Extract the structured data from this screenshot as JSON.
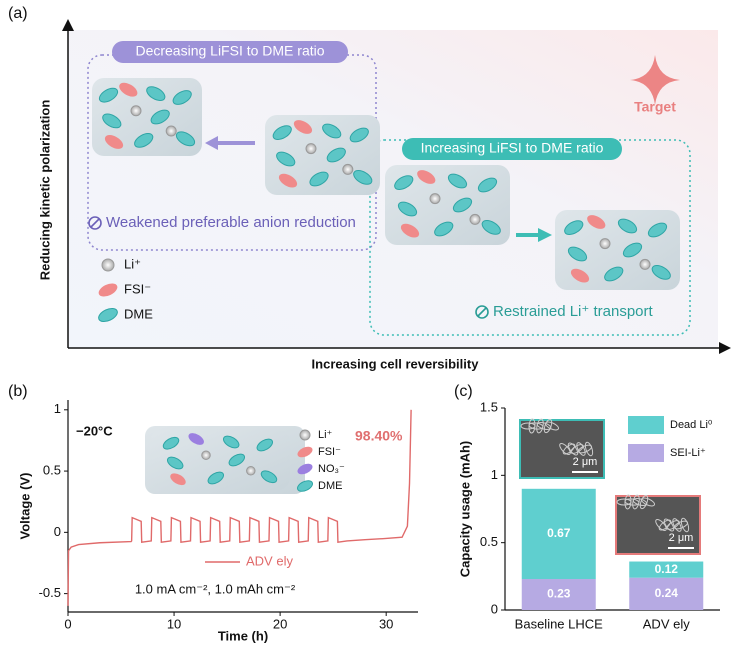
{
  "panel_a": {
    "label": "(a)",
    "y_axis": "Reducing kinetic polarization",
    "x_axis": "Increasing cell reversibility",
    "target": "Target",
    "left_box": {
      "title": "Decreasing LiFSI to DME ratio",
      "caption": "Weakened preferable anion reduction"
    },
    "right_box": {
      "title": "Increasing LiFSI to DME ratio",
      "caption": "Restrained Li⁺ transport"
    },
    "legend": [
      "Li⁺",
      "FSI⁻",
      "DME"
    ]
  },
  "chart_data": [
    {
      "type": "line",
      "label": "(b)",
      "xlabel": "Time (h)",
      "ylabel": "Voltage (V)",
      "annotations": {
        "temperature": "−20°C",
        "efficiency": "98.40%",
        "conditions": "1.0 mA cm⁻², 1.0 mAh cm⁻²"
      },
      "inset_legend": [
        "Li⁺",
        "FSI⁻",
        "NO₃⁻",
        "DME"
      ],
      "xlim": [
        0,
        33
      ],
      "xticks": [
        0,
        10,
        20,
        30
      ],
      "ylim": [
        -0.65,
        1.08
      ],
      "yticks": [
        -0.5,
        0,
        0.5,
        1
      ],
      "x": [
        0,
        0.05,
        0.3,
        1,
        3,
        5.95,
        6,
        6.05,
        6.9,
        6.95,
        7.85,
        7.9,
        8.75,
        8.8,
        9.7,
        9.75,
        10.6,
        10.65,
        11.55,
        11.6,
        12.45,
        12.5,
        13.4,
        13.45,
        14.3,
        14.35,
        15.25,
        15.3,
        16.15,
        16.2,
        17.1,
        17.15,
        18,
        18.05,
        18.95,
        19,
        19.85,
        19.9,
        20.8,
        20.85,
        21.7,
        21.75,
        22.65,
        22.7,
        23.55,
        23.6,
        24.5,
        24.55,
        25.4,
        25.45,
        26.3,
        28,
        30,
        31.5,
        32,
        32.2,
        32.35
      ],
      "series": [
        {
          "name": "ADV ely",
          "color": "#e06a6a",
          "values": [
            -0.6,
            -0.15,
            -0.12,
            -0.1,
            -0.085,
            -0.075,
            -0.07,
            0.12,
            0.09,
            -0.08,
            -0.07,
            0.12,
            0.09,
            -0.08,
            -0.07,
            0.12,
            0.09,
            -0.08,
            -0.07,
            0.12,
            0.09,
            -0.08,
            -0.07,
            0.12,
            0.09,
            -0.08,
            -0.07,
            0.12,
            0.09,
            -0.08,
            -0.07,
            0.12,
            0.09,
            -0.08,
            -0.07,
            0.12,
            0.09,
            -0.08,
            -0.07,
            0.12,
            0.09,
            -0.08,
            -0.07,
            0.12,
            0.09,
            -0.08,
            -0.07,
            0.12,
            0.09,
            -0.08,
            -0.07,
            -0.06,
            -0.05,
            -0.04,
            0.05,
            0.4,
            1.0
          ]
        }
      ]
    },
    {
      "type": "bar",
      "stacked": true,
      "label": "(c)",
      "ylabel": "Capacity usage (mAh)",
      "categories": [
        "Baseline LHCE",
        "ADV ely"
      ],
      "ylim": [
        0,
        1.5
      ],
      "yticks": [
        0,
        0.5,
        1,
        1.5
      ],
      "scale_bars": [
        "2 μm",
        "2 μm"
      ],
      "series": [
        {
          "name": "Dead Li⁰",
          "color": "#5fcfcf",
          "values": [
            0.67,
            0.12
          ]
        },
        {
          "name": "SEI-Li⁺",
          "color": "#b6aae3",
          "values": [
            0.23,
            0.24
          ]
        }
      ]
    }
  ]
}
